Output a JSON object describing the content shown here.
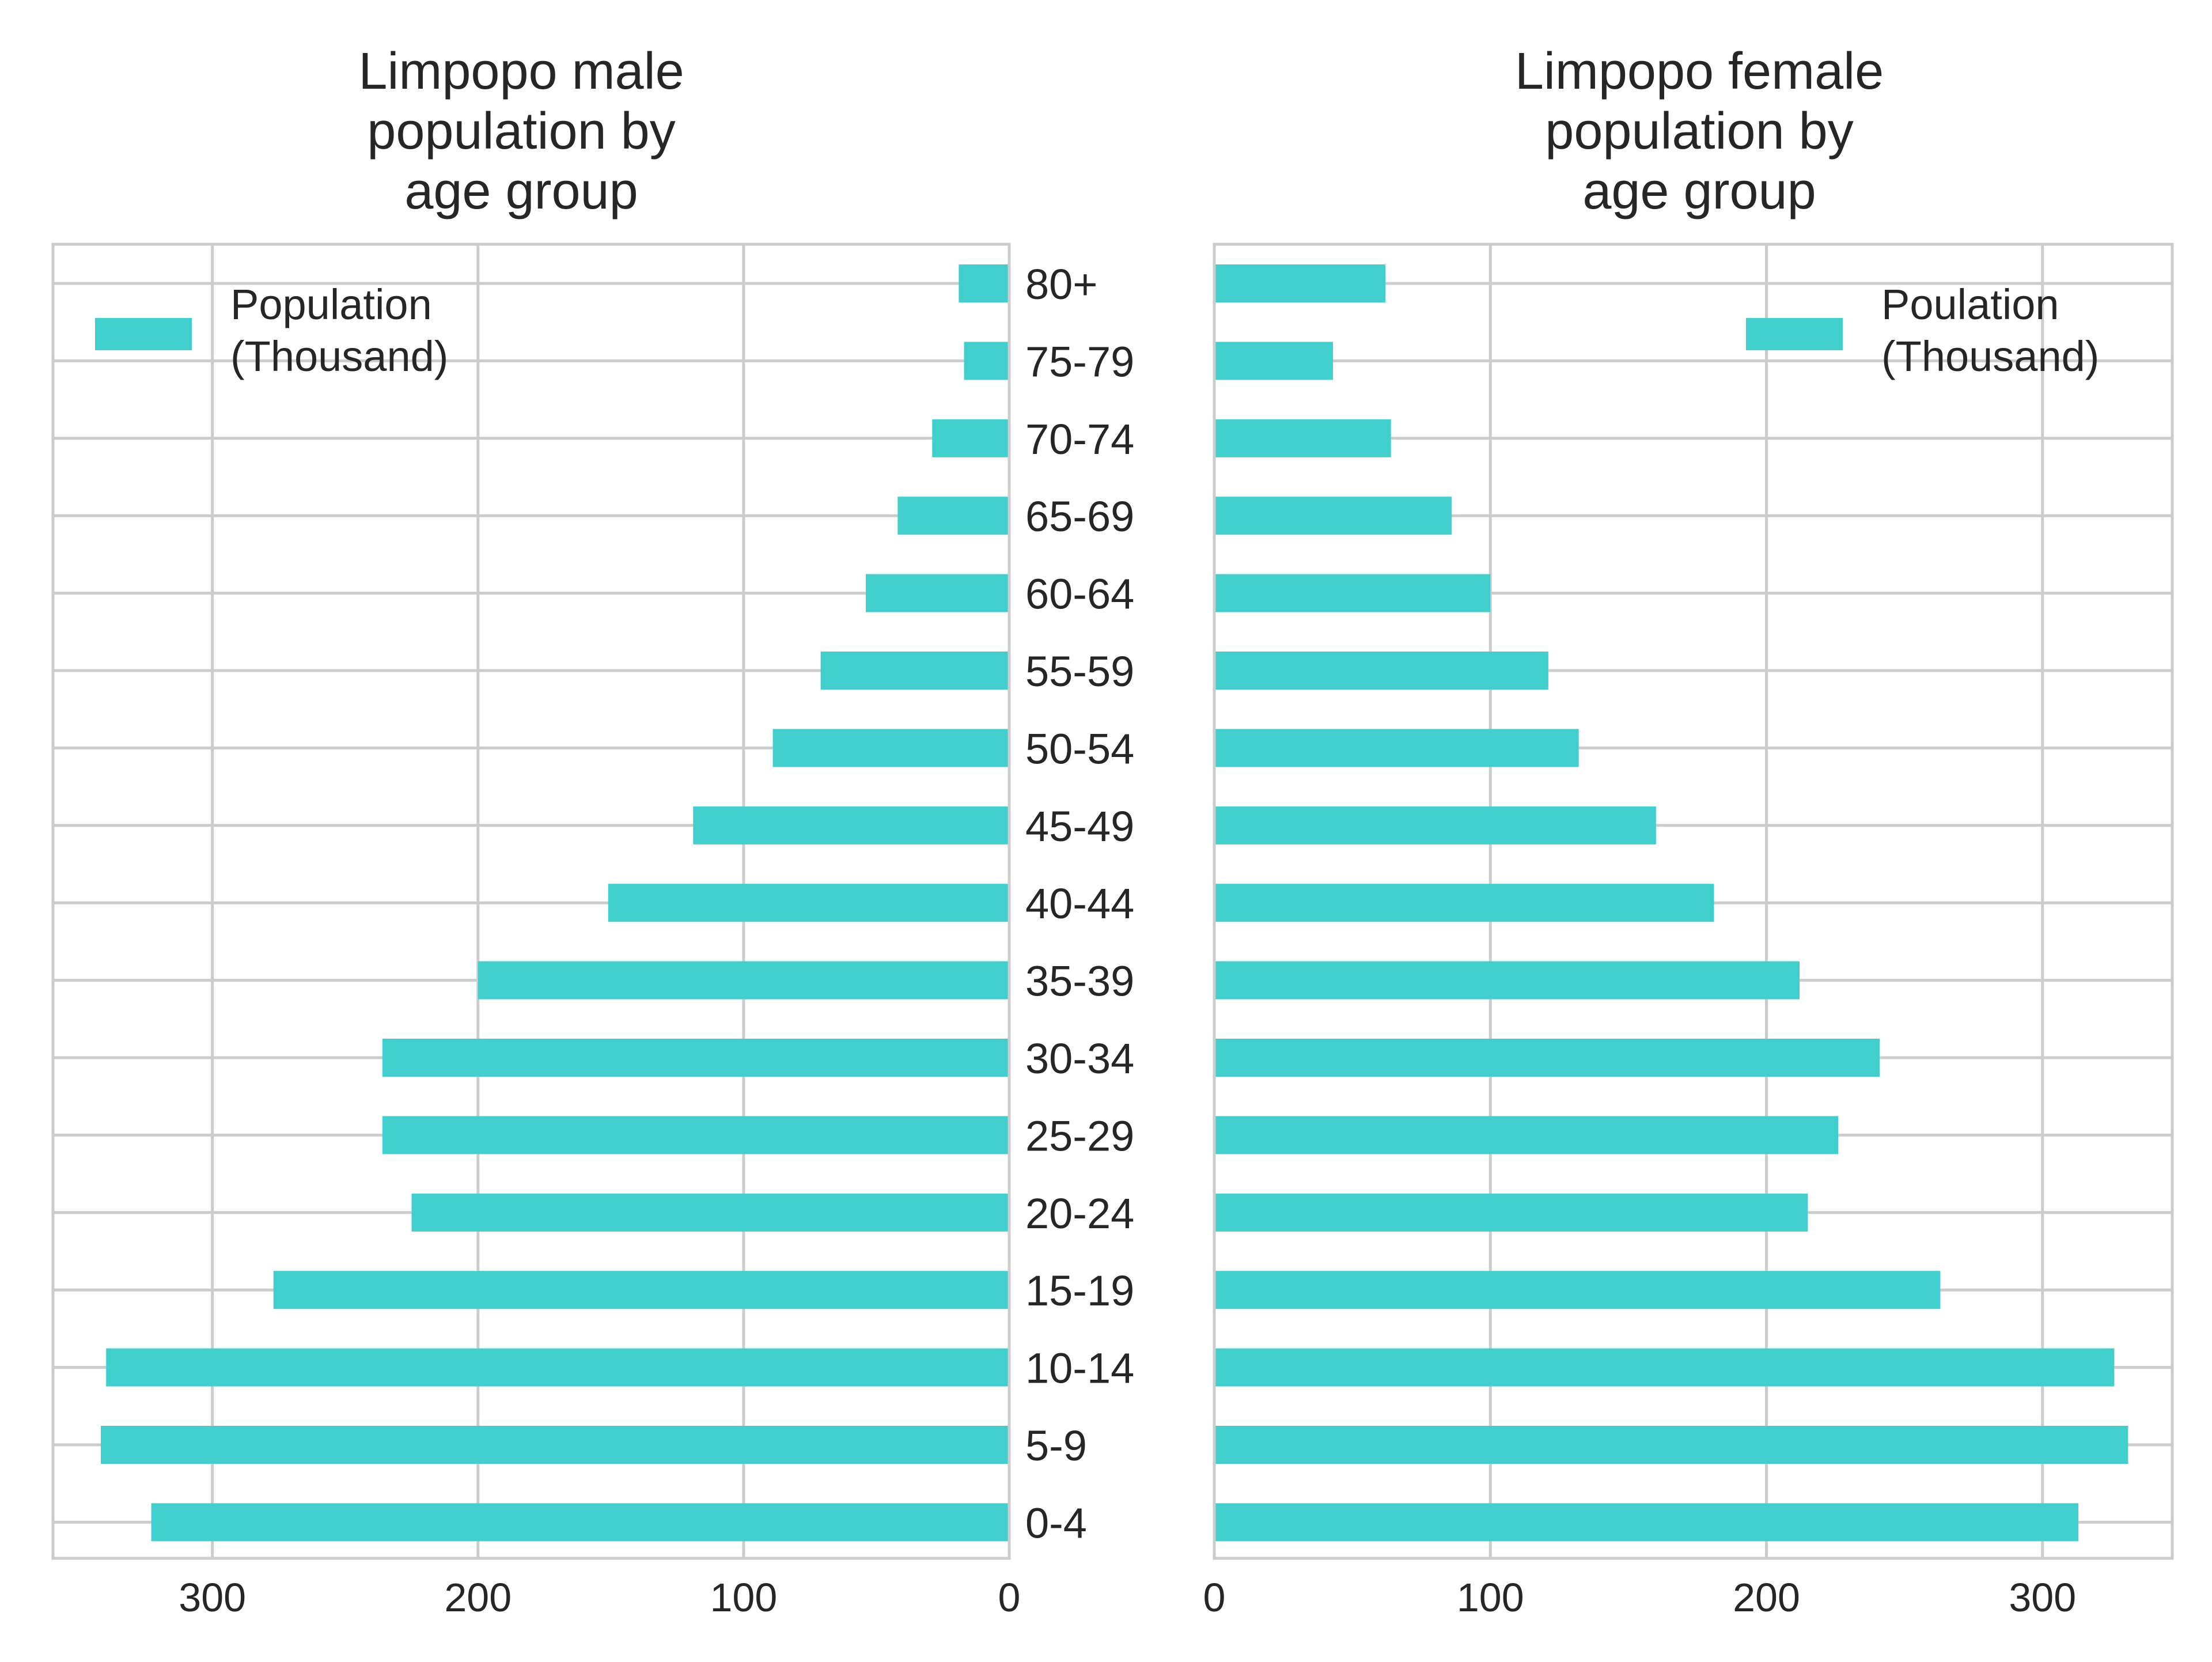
{
  "colors": {
    "bar": "#40cfcd",
    "grid": "#cccccc",
    "frame": "#cccccc",
    "text": "#262626",
    "background": "#ffffff"
  },
  "chart_data": [
    {
      "type": "bar",
      "orientation": "horizontal",
      "direction": "reversed",
      "title": "Limpopo male\npopulation by\nage group",
      "categories": [
        "0-4",
        "5-9",
        "10-14",
        "15-19",
        "20-24",
        "25-29",
        "30-34",
        "35-39",
        "40-44",
        "45-49",
        "50-54",
        "55-59",
        "60-64",
        "65-69",
        "70-74",
        "75-79",
        "80+"
      ],
      "series": [
        {
          "name": "Population\n(Thousand)",
          "values": [
            323,
            342,
            340,
            277,
            225,
            236,
            236,
            200,
            151,
            119,
            89,
            71,
            54,
            42,
            29,
            17,
            19
          ]
        }
      ],
      "xlim": [
        360,
        0
      ],
      "xticks": [
        "300",
        "200",
        "100",
        "0"
      ],
      "xtick_values": [
        300,
        200,
        100,
        0
      ],
      "grid": true,
      "legend_position": "top-left"
    },
    {
      "type": "bar",
      "orientation": "horizontal",
      "direction": "normal",
      "title": "Limpopo female\npopulation by\nage group",
      "categories": [
        "0-4",
        "5-9",
        "10-14",
        "15-19",
        "20-24",
        "25-29",
        "30-34",
        "35-39",
        "40-44",
        "45-49",
        "50-54",
        "55-59",
        "60-64",
        "65-69",
        "70-74",
        "75-79",
        "80+"
      ],
      "series": [
        {
          "name": "Poulation\n(Thousand)",
          "values": [
            313,
            331,
            326,
            263,
            215,
            226,
            241,
            212,
            181,
            160,
            132,
            121,
            100,
            86,
            64,
            43,
            62
          ]
        }
      ],
      "xlim": [
        0,
        347
      ],
      "xticks": [
        "0",
        "100",
        "200",
        "300"
      ],
      "xtick_values": [
        0,
        100,
        200,
        300
      ],
      "grid": true,
      "legend_position": "top-right"
    }
  ]
}
